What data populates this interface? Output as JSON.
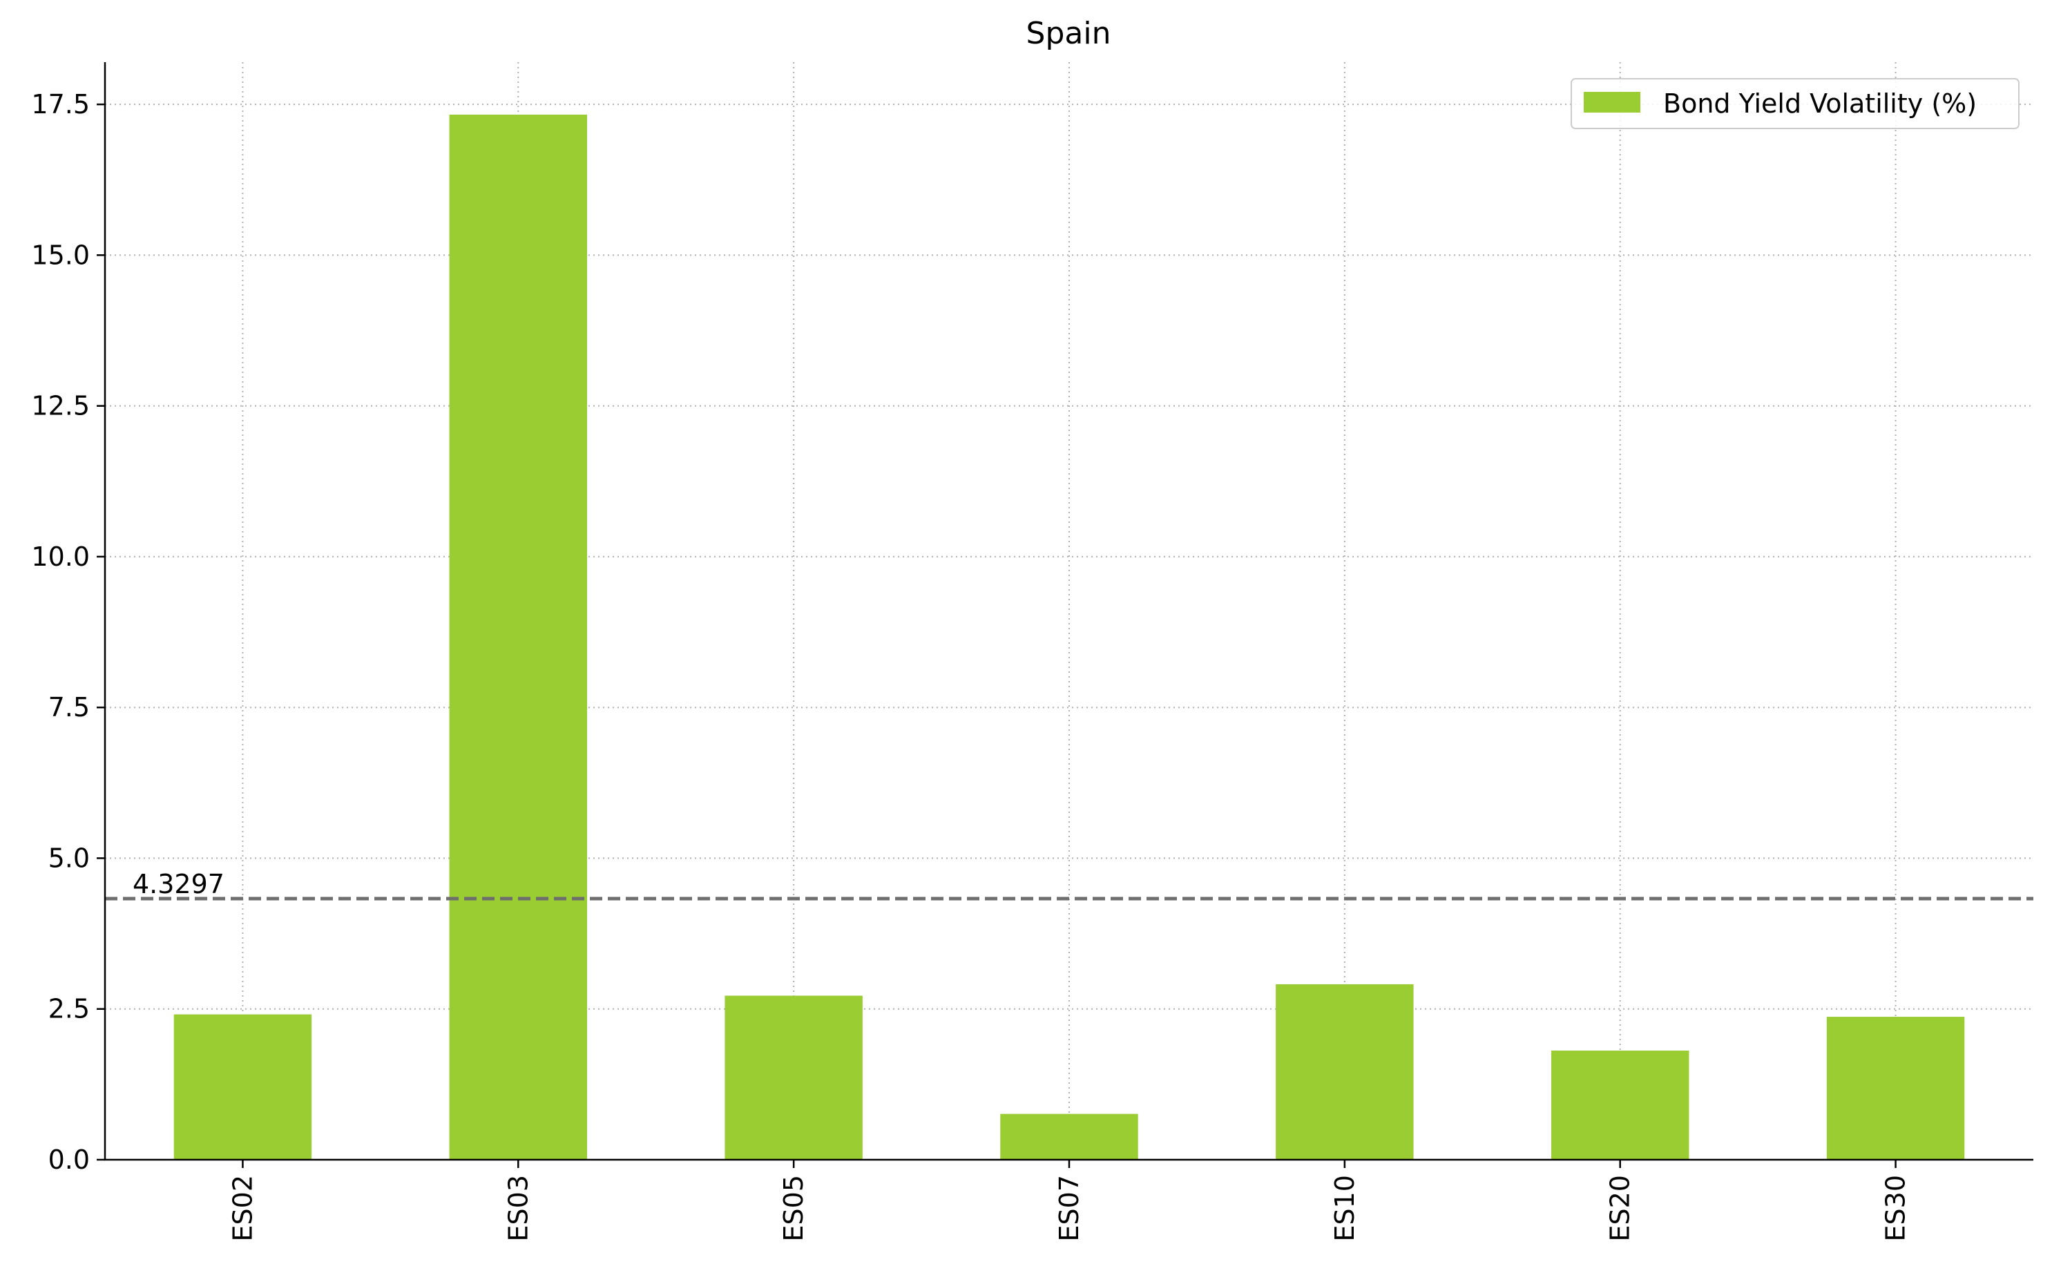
{
  "chart_data": {
    "type": "bar",
    "title": "Spain",
    "xlabel": "",
    "ylabel": "",
    "categories": [
      "ES02",
      "ES03",
      "ES05",
      "ES07",
      "ES10",
      "ES20",
      "ES30"
    ],
    "series": [
      {
        "name": "Bond Yield Volatility (%)",
        "values": [
          2.41,
          17.33,
          2.72,
          0.76,
          2.91,
          1.81,
          2.37
        ],
        "color": "#9ACD32"
      }
    ],
    "ylim": [
      0,
      18.2
    ],
    "yticks": [
      0.0,
      2.5,
      5.0,
      7.5,
      10.0,
      12.5,
      15.0,
      17.5
    ],
    "ytick_labels": [
      "0.0",
      "2.5",
      "5.0",
      "7.5",
      "10.0",
      "12.5",
      "15.0",
      "17.5"
    ],
    "grid": true,
    "legend_position": "top-right",
    "reference_line": {
      "value": 4.3297,
      "label": "4.3297",
      "style": "dashed",
      "color": "#6E6E6E"
    }
  }
}
